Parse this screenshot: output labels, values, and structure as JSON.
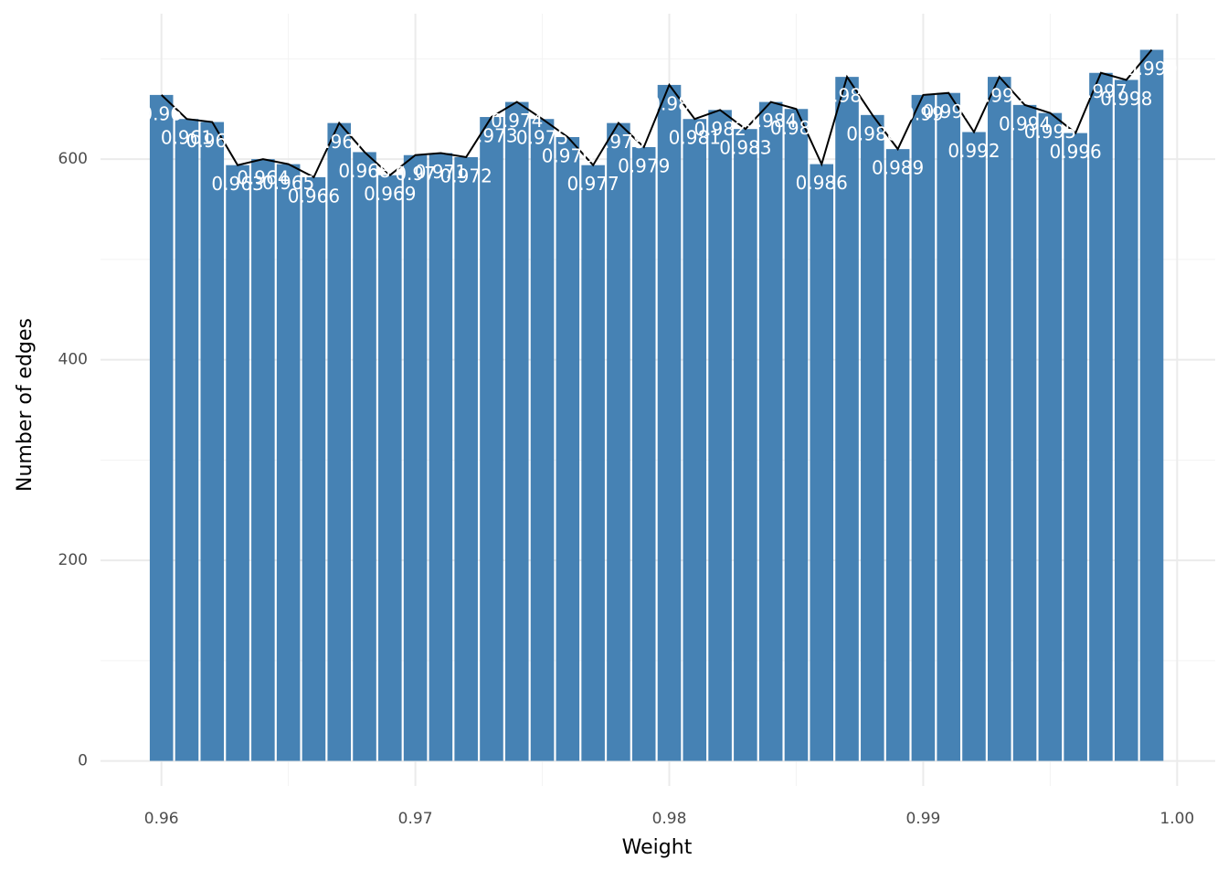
{
  "chart_data": {
    "type": "bar_line",
    "x_label": "Weight",
    "y_label": "Number of edges",
    "x": [
      0.96,
      0.961,
      0.962,
      0.963,
      0.964,
      0.965,
      0.966,
      0.967,
      0.968,
      0.969,
      0.97,
      0.971,
      0.972,
      0.973,
      0.974,
      0.975,
      0.976,
      0.977,
      0.978,
      0.979,
      0.98,
      0.981,
      0.982,
      0.983,
      0.984,
      0.985,
      0.986,
      0.987,
      0.988,
      0.989,
      0.99,
      0.991,
      0.992,
      0.993,
      0.994,
      0.995,
      0.996,
      0.997,
      0.998,
      0.999
    ],
    "values": [
      664,
      640,
      637,
      594,
      600,
      595,
      582,
      636,
      607,
      584,
      604,
      606,
      602,
      642,
      657,
      640,
      622,
      594,
      636,
      612,
      674,
      640,
      649,
      630,
      657,
      650,
      595,
      682,
      644,
      610,
      664,
      666,
      627,
      682,
      654,
      646,
      626,
      686,
      679,
      709
    ],
    "bar_width": 0.001,
    "color": "#4682b4",
    "line_color": "#000000",
    "label_color": "#ffffff",
    "xlim": [
      0.9576,
      1.0015
    ],
    "ylim": [
      -25,
      745
    ],
    "xticks": [
      0.96,
      0.97,
      0.98,
      0.99,
      {
        "value": 1,
        "label": "1.00"
      }
    ],
    "yticks": [
      0,
      200,
      400,
      600
    ],
    "xminor": [
      0.965,
      0.975,
      0.985,
      0.995
    ],
    "yminor": [
      100,
      300,
      500,
      700
    ],
    "grid": true
  }
}
